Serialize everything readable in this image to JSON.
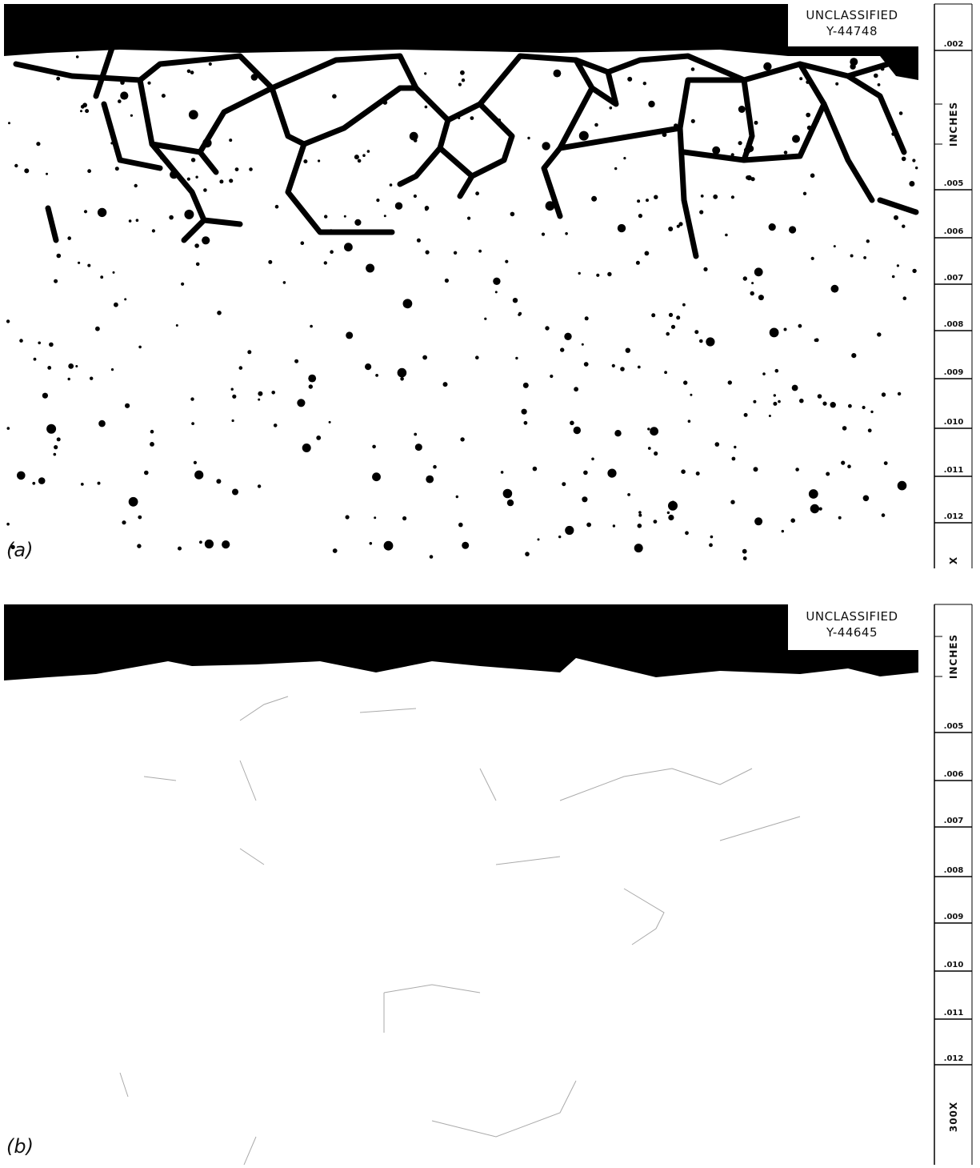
{
  "panels": [
    {
      "label": "(a)",
      "stamp": {
        "classification": "UNCLASSIFIED",
        "id": "Y-44748"
      },
      "scale": {
        "unit": "INCHES",
        "marks": [
          ".002",
          ".005",
          ".006",
          ".007",
          ".008",
          ".009",
          ".010",
          ".011",
          ".012"
        ],
        "magnification": "X"
      }
    },
    {
      "label": "(b)",
      "stamp": {
        "classification": "UNCLASSIFIED",
        "id": "Y-44645"
      },
      "scale": {
        "unit": "INCHES",
        "marks": [
          ".005",
          ".006",
          ".007",
          ".008",
          ".009",
          ".010",
          ".011",
          ".012"
        ],
        "magnification": "300X"
      }
    }
  ]
}
